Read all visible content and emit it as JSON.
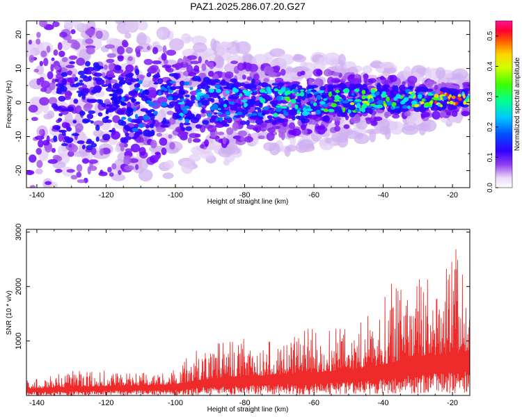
{
  "title": "PAZ1.2025.286.07.20.G27",
  "colors": {
    "snr_line": "#ee2a2a",
    "colormap": [
      "#ffffff",
      "#e6cdf6",
      "#b27be9",
      "#8a2be2",
      "#7a00ff",
      "#1a00ff",
      "#0080ff",
      "#00e5ff",
      "#00ff9a",
      "#37ff00",
      "#c6ff00",
      "#ffe600",
      "#ff8c00",
      "#ff0000",
      "#ff2a6a",
      "#ff1493"
    ]
  },
  "chart_data": [
    {
      "type": "heatmap",
      "title": "PAZ1.2025.286.07.20.G27",
      "xlabel": "Height of straight line (km)",
      "ylabel": "Frequency (Hz)",
      "xlim": [
        -143,
        -15
      ],
      "ylim": [
        -25,
        24
      ],
      "xticks": [
        -140,
        -120,
        -100,
        -80,
        -60,
        -40,
        -20
      ],
      "xtick_labels": [
        "-140",
        "-120",
        "-100",
        "-80",
        "-60",
        "-40",
        "-20"
      ],
      "yticks": [
        -20,
        -10,
        0,
        10,
        20
      ],
      "ytick_labels": [
        "-20",
        "-10",
        "0",
        "10",
        "20"
      ],
      "colorbar": {
        "label": "Normalized spectral amplitude",
        "range": [
          0,
          0.55
        ],
        "ticks": [
          0.0,
          0.1,
          0.2,
          0.3,
          0.4,
          0.5
        ],
        "tick_labels": [
          "0.0",
          "0.1",
          "0.2",
          "0.3",
          "0.4",
          "0.5"
        ]
      },
      "description_of_data": {
        "signal_band_center_hz_by_height": [
          [
            -140,
            -1
          ],
          [
            -120,
            -1
          ],
          [
            -100,
            0
          ],
          [
            -80,
            0
          ],
          [
            -60,
            0
          ],
          [
            -40,
            1
          ],
          [
            -20,
            1
          ]
        ],
        "signal_band_halfwidth_hz_by_height": [
          [
            -140,
            22
          ],
          [
            -120,
            18
          ],
          [
            -100,
            12
          ],
          [
            -80,
            9
          ],
          [
            -60,
            7
          ],
          [
            -40,
            5
          ],
          [
            -20,
            3
          ]
        ],
        "peak_amplitude_region": [
          [
            -25,
            0.5
          ],
          [
            -20,
            0.55
          ]
        ]
      }
    },
    {
      "type": "line",
      "title": "",
      "xlabel": "Height of straight line (km)",
      "ylabel": "SNR (10 * v/v)",
      "xlim": [
        -143,
        -15
      ],
      "ylim": [
        0,
        3050
      ],
      "xticks": [
        -140,
        -120,
        -100,
        -80,
        -60,
        -40,
        -20
      ],
      "xtick_labels": [
        "-140",
        "-120",
        "-100",
        "-80",
        "-60",
        "-40",
        "-20"
      ],
      "yticks": [
        1000,
        2000,
        3000
      ],
      "ytick_labels": [
        "1000",
        "2000",
        "3000"
      ],
      "series": [
        {
          "name": "SNR",
          "envelope": {
            "x": [
              -143,
              -130,
              -120,
              -110,
              -100,
              -95,
              -90,
              -85,
              -80,
              -75,
              -70,
              -65,
              -60,
              -55,
              -50,
              -45,
              -40,
              -35,
              -32,
              -28,
              -25,
              -20,
              -18,
              -15
            ],
            "y_base": [
              120,
              150,
              170,
              180,
              200,
              260,
              300,
              330,
              350,
              360,
              380,
              400,
              420,
              440,
              470,
              500,
              560,
              640,
              700,
              720,
              740,
              760,
              780,
              820
            ],
            "y_peak": [
              280,
              450,
              480,
              420,
              520,
              780,
              980,
              1000,
              1050,
              1050,
              1100,
              1200,
              1250,
              1200,
              1300,
              1400,
              1900,
              2600,
              2300,
              2100,
              2200,
              3000,
              2700,
              1400
            ]
          }
        }
      ]
    }
  ]
}
